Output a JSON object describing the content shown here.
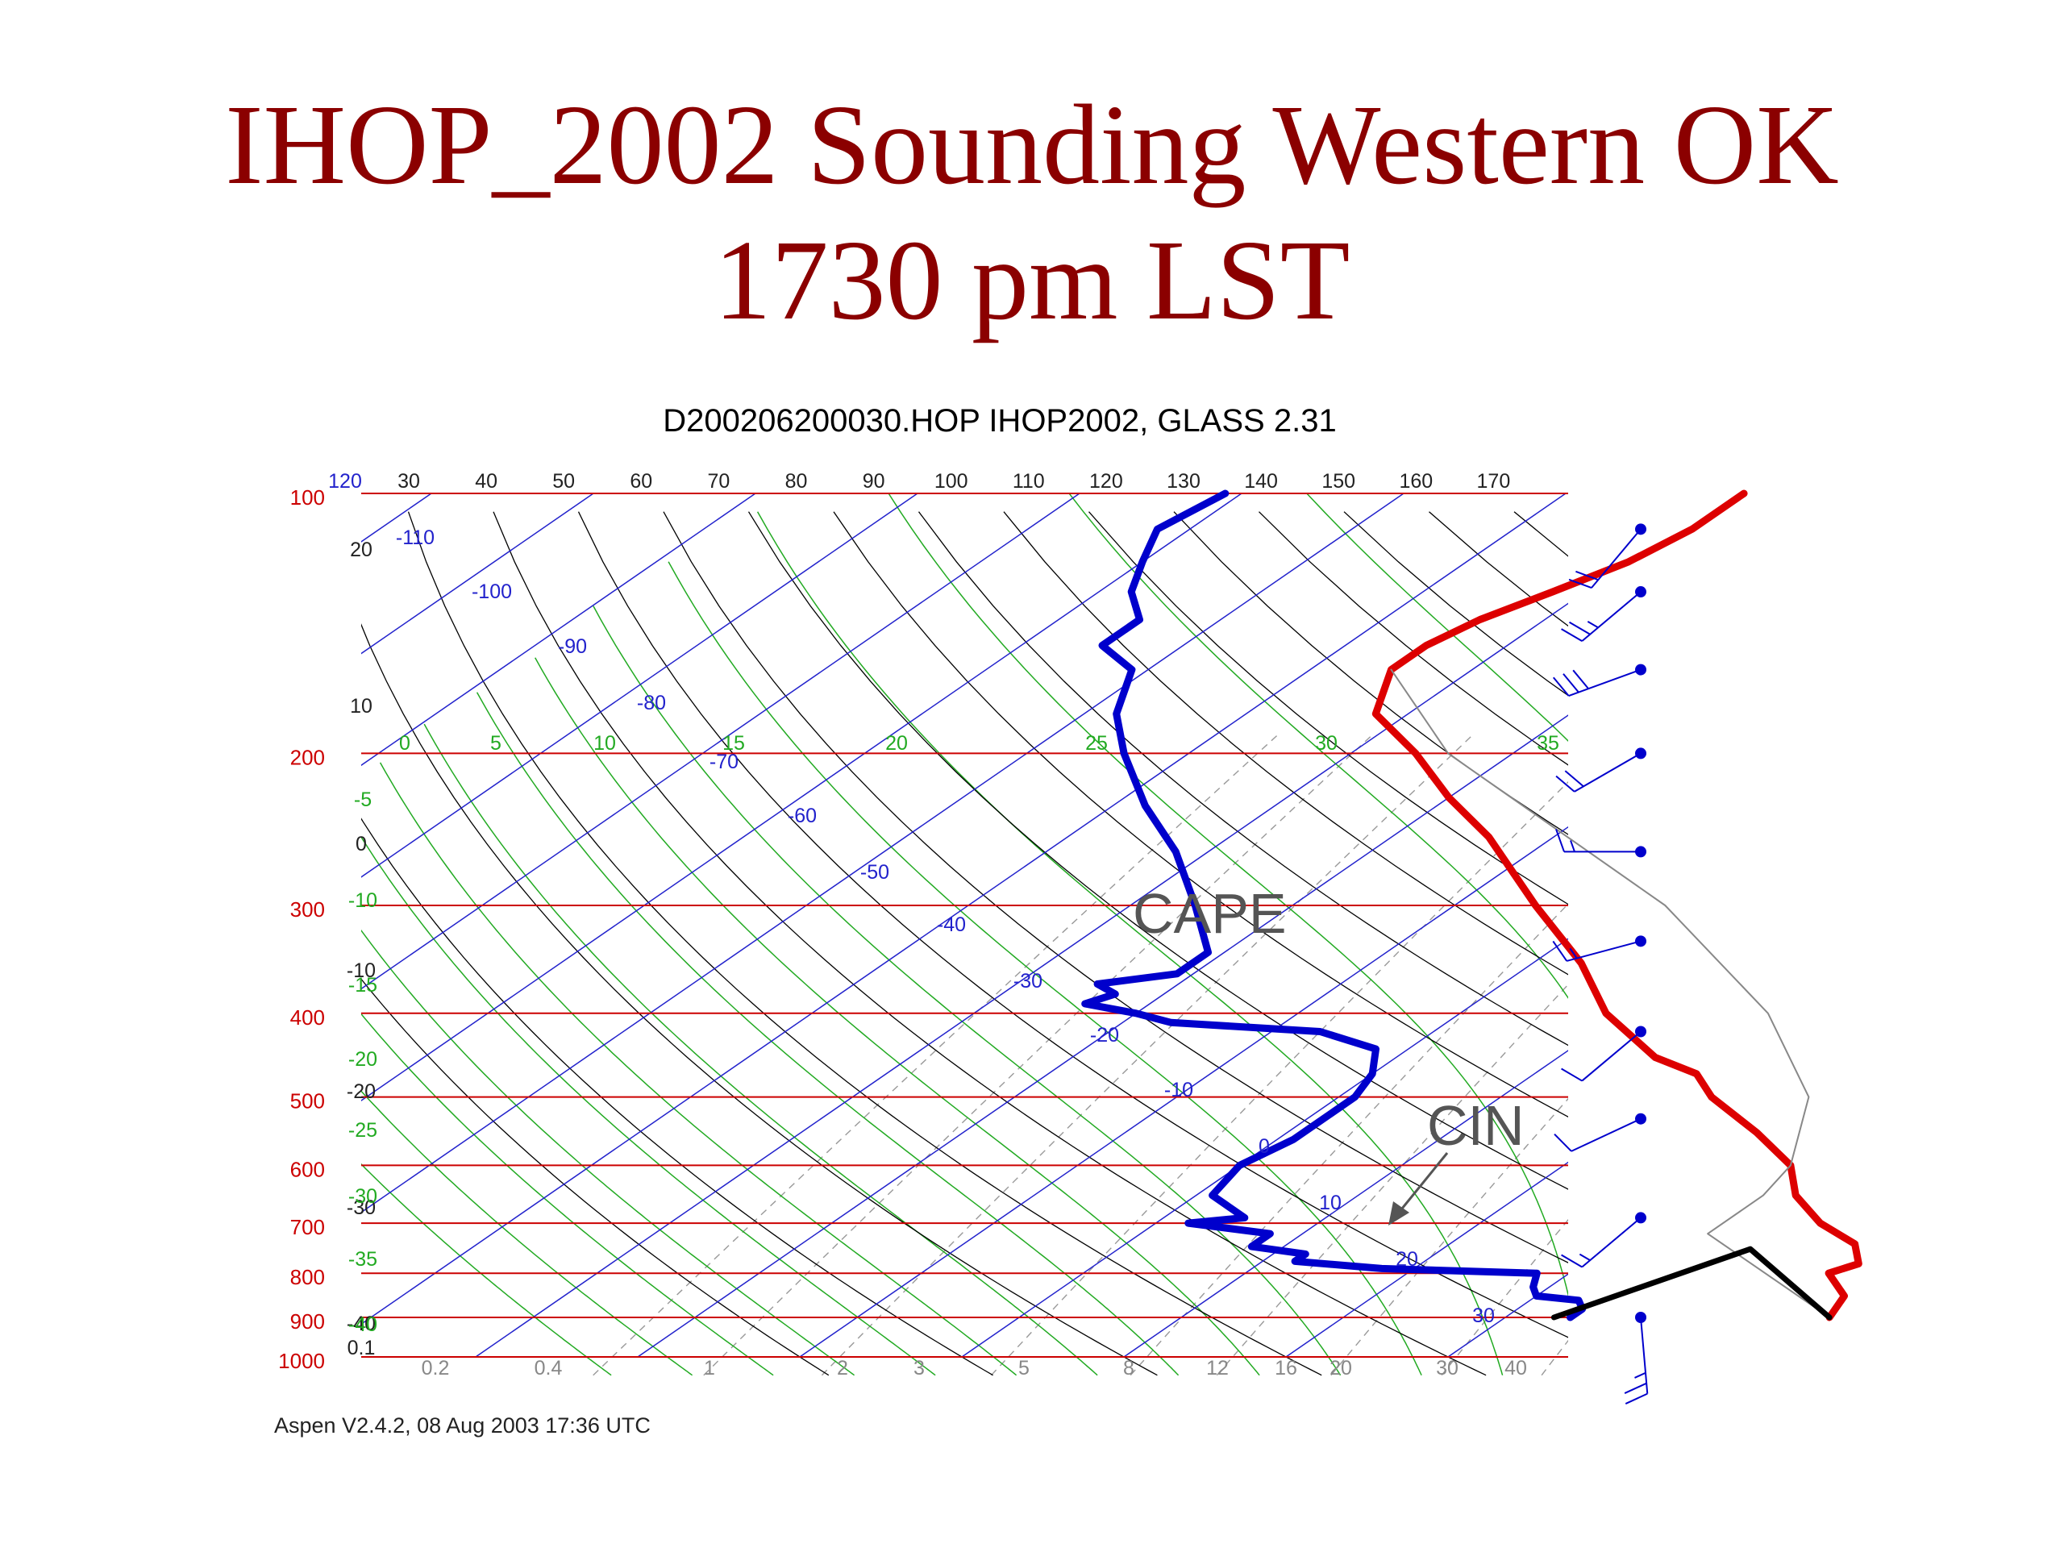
{
  "slide": {
    "title_line1": "IHOP_2002 Sounding Western OK",
    "title_line2": "1730 pm LST"
  },
  "chart_data": {
    "type": "line",
    "title": "D200206200030.HOP IHOP2002, GLASS 2.31",
    "footer": "Aspen V2.4.2, 08 Aug 2003  17:36 UTC",
    "pressure_labels": [
      "100",
      "200",
      "300",
      "400",
      "500",
      "600",
      "700",
      "800",
      "900",
      "1000"
    ],
    "top_temp_labels": [
      "120",
      "30",
      "40",
      "50",
      "60",
      "70",
      "80",
      "90",
      "100",
      "110",
      "120",
      "130",
      "140",
      "150",
      "160",
      "170"
    ],
    "left_height_labels": [
      "20",
      "10",
      "0",
      "-10",
      "-20",
      "-30",
      "-40",
      "0.1"
    ],
    "mixing_ratio_labels": [
      "0.2",
      "0.4",
      "1",
      "2",
      "3",
      "5",
      "8",
      "12",
      "16",
      "20",
      "30",
      "40"
    ],
    "theta_e_labels": [
      "0",
      "5",
      "10",
      "15",
      "20",
      "25",
      "30",
      "35"
    ],
    "left_green_labels": [
      "-5",
      "-10",
      "-15",
      "-20",
      "-25",
      "-30",
      "-35",
      "-40"
    ],
    "isotherm_labels": [
      "-110",
      "-100",
      "-90",
      "-80",
      "-70",
      "-60",
      "-50",
      "-40",
      "-30",
      "-20",
      "-10",
      "0",
      "10",
      "20",
      "30"
    ],
    "annotations": [
      "CAPE",
      "CIN"
    ],
    "colors": {
      "temperature": "#dd0000",
      "dewpoint": "#0000cc",
      "parcel": "#000000",
      "isobar": "#cc0000",
      "skewed_isotherm": "#2222cc",
      "dry_adiabat": "#000000",
      "moist_adiabat": "#22aa22",
      "mixing_ratio": "#999999",
      "wind_barb": "#0000cc"
    },
    "series": [
      {
        "id": "temperature",
        "points": [
          [
            900,
            30
          ],
          [
            850,
            29
          ],
          [
            800,
            26
          ],
          [
            780,
            27
          ],
          [
            740,
            25
          ],
          [
            700,
            21
          ],
          [
            650,
            17
          ],
          [
            600,
            14
          ],
          [
            550,
            9
          ],
          [
            500,
            3
          ],
          [
            470,
            0
          ],
          [
            450,
            -4
          ],
          [
            400,
            -11
          ],
          [
            350,
            -17
          ],
          [
            300,
            -25
          ],
          [
            250,
            -34
          ],
          [
            225,
            -40
          ],
          [
            200,
            -46
          ],
          [
            180,
            -52
          ],
          [
            160,
            -55
          ],
          [
            150,
            -55
          ],
          [
            140,
            -54
          ],
          [
            130,
            -52
          ],
          [
            120,
            -50
          ],
          [
            110,
            -49
          ],
          [
            100,
            -49
          ]
        ]
      },
      {
        "id": "dewpoint",
        "points": [
          [
            900,
            14
          ],
          [
            880,
            14
          ],
          [
            860,
            13
          ],
          [
            850,
            10
          ],
          [
            830,
            9
          ],
          [
            800,
            8
          ],
          [
            790,
            -2
          ],
          [
            775,
            -8
          ],
          [
            760,
            -8
          ],
          [
            745,
            -12
          ],
          [
            720,
            -12
          ],
          [
            700,
            -18
          ],
          [
            690,
            -15
          ],
          [
            650,
            -19
          ],
          [
            600,
            -20
          ],
          [
            560,
            -19
          ],
          [
            500,
            -19
          ],
          [
            470,
            -20
          ],
          [
            440,
            -22
          ],
          [
            420,
            -27
          ],
          [
            410,
            -37
          ],
          [
            400,
            -40
          ],
          [
            390,
            -44
          ],
          [
            380,
            -43
          ],
          [
            370,
            -45
          ],
          [
            360,
            -41
          ],
          [
            340,
            -41
          ],
          [
            300,
            -46
          ],
          [
            260,
            -52
          ],
          [
            230,
            -58
          ],
          [
            200,
            -64
          ],
          [
            180,
            -68
          ],
          [
            160,
            -71
          ],
          [
            150,
            -75
          ],
          [
            140,
            -75
          ],
          [
            130,
            -78
          ],
          [
            120,
            -80
          ],
          [
            110,
            -82
          ],
          [
            100,
            -81
          ]
        ]
      },
      {
        "id": "parcel",
        "points": [
          [
            900,
            30
          ],
          [
            720,
            15
          ],
          [
            650,
            15
          ],
          [
            600,
            14
          ],
          [
            500,
            9
          ],
          [
            400,
            -1
          ],
          [
            300,
            -17
          ],
          [
            200,
            -44
          ],
          [
            160,
            -55
          ]
        ]
      },
      {
        "id": "surface_parcel",
        "points": [
          [
            900,
            13
          ],
          [
            750,
            19
          ],
          [
            900,
            30
          ]
        ]
      }
    ],
    "wind_barbs": [
      {
        "pressure": 110,
        "dir": 220,
        "kt": 20
      },
      {
        "pressure": 130,
        "dir": 230,
        "kt": 25
      },
      {
        "pressure": 160,
        "dir": 250,
        "kt": 30
      },
      {
        "pressure": 200,
        "dir": 240,
        "kt": 20
      },
      {
        "pressure": 260,
        "dir": 270,
        "kt": 15
      },
      {
        "pressure": 330,
        "dir": 255,
        "kt": 15
      },
      {
        "pressure": 420,
        "dir": 230,
        "kt": 10
      },
      {
        "pressure": 530,
        "dir": 245,
        "kt": 10
      },
      {
        "pressure": 690,
        "dir": 230,
        "kt": 15
      },
      {
        "pressure": 900,
        "dir": 175,
        "kt": 25
      }
    ]
  }
}
